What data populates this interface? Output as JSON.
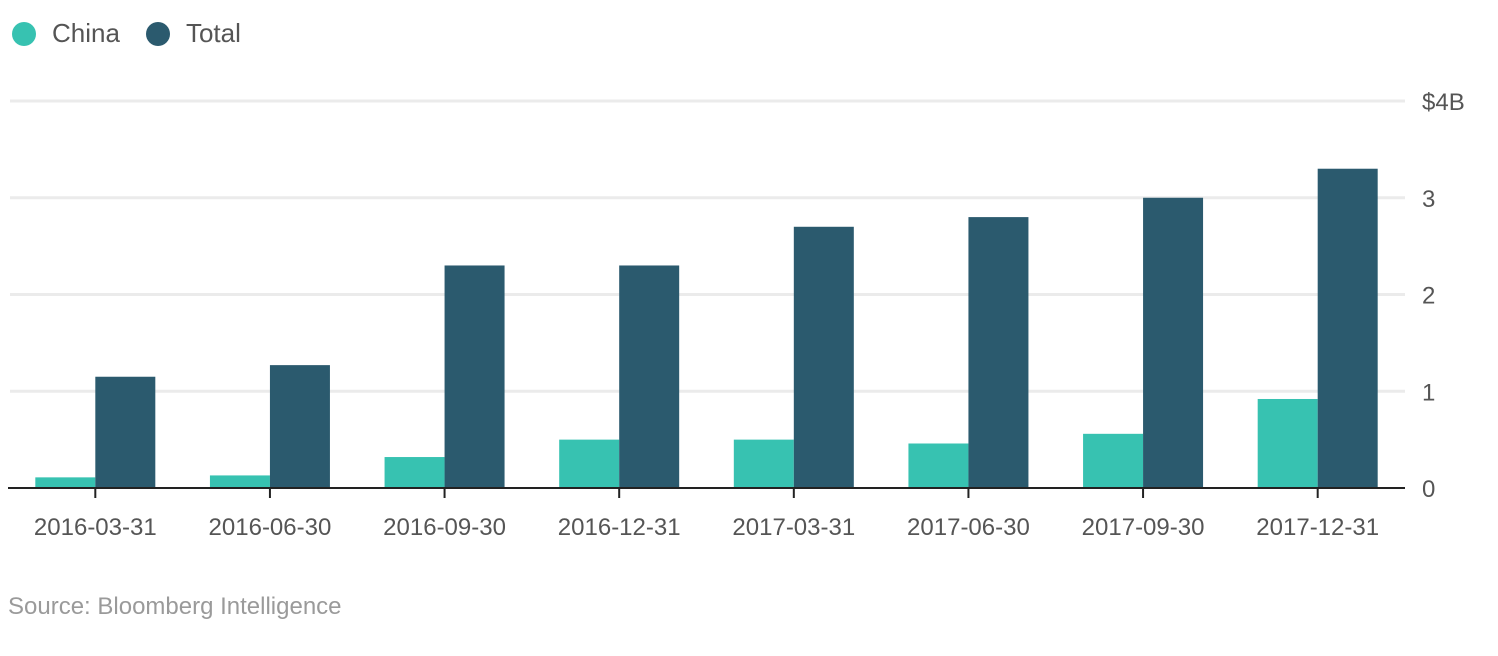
{
  "chart_data": {
    "type": "bar",
    "categories": [
      "2016-03-31",
      "2016-06-30",
      "2016-09-30",
      "2016-12-31",
      "2017-03-31",
      "2017-06-30",
      "2017-09-30",
      "2017-12-31"
    ],
    "series": [
      {
        "name": "China",
        "color": "#37c2b1",
        "values": [
          0.11,
          0.13,
          0.32,
          0.5,
          0.5,
          0.46,
          0.56,
          0.92
        ]
      },
      {
        "name": "Total",
        "color": "#2b5a6e",
        "values": [
          1.15,
          1.27,
          2.3,
          2.3,
          2.7,
          2.8,
          3.0,
          3.3
        ]
      }
    ],
    "yticks": [
      {
        "value": 0,
        "label": "0"
      },
      {
        "value": 1,
        "label": "1"
      },
      {
        "value": 2,
        "label": "2"
      },
      {
        "value": 3,
        "label": "3"
      },
      {
        "value": 4,
        "label": "$4B"
      }
    ],
    "ylim": [
      0,
      4
    ],
    "y_axis_position": "right",
    "grid": true,
    "legend_position": "top-left",
    "title": "",
    "xlabel": "",
    "ylabel": ""
  },
  "legend": [
    {
      "label": "China",
      "color": "#37c2b1"
    },
    {
      "label": "Total",
      "color": "#2b5a6e"
    }
  ],
  "source": "Source: Bloomberg Intelligence"
}
